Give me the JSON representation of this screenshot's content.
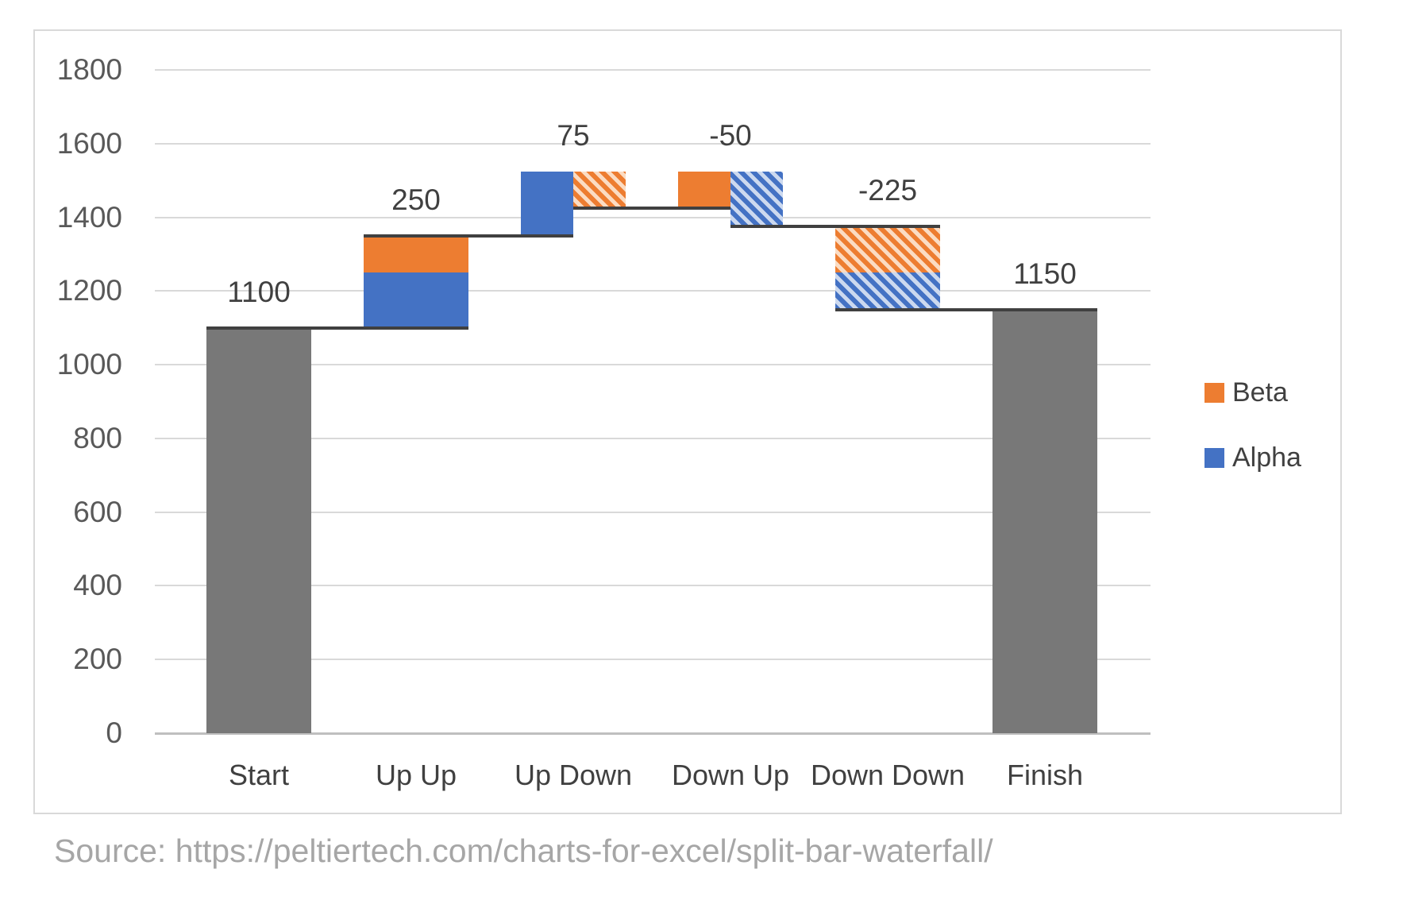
{
  "page": {
    "background": "#ffffff",
    "source_text": "Source: https://peltiertech.com/charts-for-excel/split-bar-waterfall/"
  },
  "legend": {
    "position": "right",
    "items": [
      {
        "label": "Beta",
        "color": "#ed7d31"
      },
      {
        "label": "Alpha",
        "color": "#4472c4"
      }
    ]
  },
  "colors": {
    "alpha": "#4472c4",
    "beta": "#ed7d31",
    "total_gray": "#787878",
    "connector": "#404040",
    "gridline": "#d9d9d9",
    "axis_line": "#bfbfbf",
    "tick_text": "#595959",
    "label_text": "#404040",
    "source_text": "#a6a6a6",
    "chart_border": "#d9d9d9",
    "hatch_bg_orange": "#fbdcc3",
    "hatch_bg_blue": "#ccd9ef"
  },
  "chart_data": {
    "type": "bar",
    "subtype": "split-bar-waterfall",
    "title": "",
    "xlabel": "",
    "ylabel": "",
    "grid": true,
    "legend_position": "right",
    "categories": [
      "Start",
      "Up Up",
      "Up Down",
      "Down Up",
      "Down Down",
      "Finish"
    ],
    "data_labels": [
      "1100",
      "250",
      "75",
      "-50",
      "-225",
      "1150"
    ],
    "y_axis": {
      "min": 0,
      "max": 1800,
      "step": 200
    },
    "series": [
      {
        "name": "Alpha",
        "color": "#4472c4",
        "values_by_category": [
          null,
          150,
          175,
          -150,
          -100,
          null
        ]
      },
      {
        "name": "Beta",
        "color": "#ed7d31",
        "values_by_category": [
          null,
          100,
          -100,
          100,
          -125,
          null
        ]
      }
    ],
    "totals": {
      "Start": 1100,
      "Finish": 1150
    },
    "columns": [
      {
        "category": "Start",
        "label": "1100",
        "segments": [
          {
            "series": "Total",
            "fill": "solid",
            "color_key": "total_gray",
            "from": 0,
            "to": 1100,
            "span": "full"
          }
        ]
      },
      {
        "category": "Up Up",
        "label": "250",
        "segments": [
          {
            "series": "Alpha",
            "fill": "solid",
            "color_key": "alpha",
            "from": 1100,
            "to": 1250,
            "span": "full"
          },
          {
            "series": "Beta",
            "fill": "solid",
            "color_key": "beta",
            "from": 1250,
            "to": 1350,
            "span": "full"
          }
        ]
      },
      {
        "category": "Up Down",
        "label": "75",
        "segments": [
          {
            "series": "Alpha",
            "fill": "solid",
            "color_key": "alpha",
            "from": 1350,
            "to": 1525,
            "span": "left"
          },
          {
            "series": "Beta",
            "fill": "hatch",
            "color_key": "beta",
            "from": 1525,
            "to": 1425,
            "span": "right"
          }
        ]
      },
      {
        "category": "Down Up",
        "label": "-50",
        "segments": [
          {
            "series": "Beta",
            "fill": "solid",
            "color_key": "beta",
            "from": 1425,
            "to": 1525,
            "span": "left"
          },
          {
            "series": "Alpha",
            "fill": "hatch",
            "color_key": "alpha",
            "from": 1525,
            "to": 1375,
            "span": "right"
          }
        ]
      },
      {
        "category": "Down Down",
        "label": "-225",
        "segments": [
          {
            "series": "Beta",
            "fill": "hatch",
            "color_key": "beta",
            "from": 1375,
            "to": 1250,
            "span": "full"
          },
          {
            "series": "Alpha",
            "fill": "hatch",
            "color_key": "alpha",
            "from": 1250,
            "to": 1150,
            "span": "full"
          }
        ]
      },
      {
        "category": "Finish",
        "label": "1150",
        "segments": [
          {
            "series": "Total",
            "fill": "solid",
            "color_key": "total_gray",
            "from": 0,
            "to": 1150,
            "span": "full"
          }
        ]
      }
    ],
    "connectors": [
      {
        "level": 1100,
        "x1": {
          "col": 0,
          "anchor": "left"
        },
        "x2": {
          "col": 1,
          "anchor": "right"
        }
      },
      {
        "level": 1350,
        "x1": {
          "col": 1,
          "anchor": "left"
        },
        "x2": {
          "col": 2,
          "anchor": "center"
        }
      },
      {
        "level": 1425,
        "x1": {
          "col": 2,
          "anchor": "center"
        },
        "x2": {
          "col": 3,
          "anchor": "center"
        }
      },
      {
        "level": 1375,
        "x1": {
          "col": 3,
          "anchor": "center"
        },
        "x2": {
          "col": 4,
          "anchor": "right"
        }
      },
      {
        "level": 1150,
        "x1": {
          "col": 4,
          "anchor": "left"
        },
        "x2": {
          "col": 5,
          "anchor": "right"
        }
      }
    ]
  }
}
